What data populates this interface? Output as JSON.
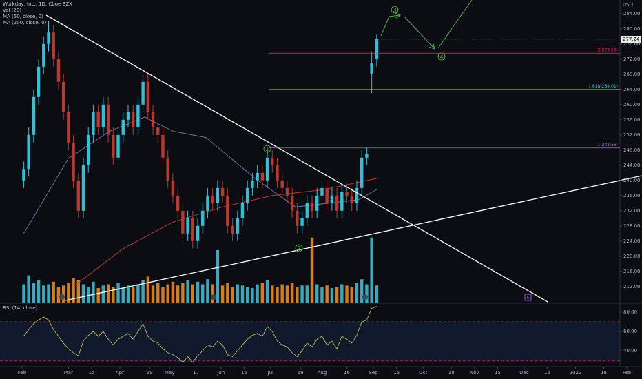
{
  "chart_data": {
    "type": "candlestick",
    "title": "Workday, Inc., 1D, Cboe BZX",
    "currency": "USD",
    "up_color": "#2bc3d9",
    "down_color": "#b8392f",
    "x": [
      32,
      35,
      38,
      41,
      44,
      47,
      50,
      53,
      56,
      59,
      62,
      65,
      68,
      71,
      74,
      77,
      80,
      83,
      86,
      89,
      92,
      95,
      98,
      101,
      104,
      107,
      110,
      113,
      116,
      119,
      122,
      125,
      128,
      131,
      134,
      137,
      140,
      143,
      146,
      149,
      152,
      155,
      158,
      161,
      164,
      167,
      170,
      173,
      176,
      179,
      182,
      185,
      188,
      191,
      194,
      197,
      200,
      203,
      206,
      209,
      212,
      215,
      218,
      221,
      224,
      227,
      230,
      233,
      236,
      239,
      242,
      245
    ],
    "open": [
      240,
      243,
      252,
      262,
      270,
      276,
      279,
      272,
      266,
      258,
      250,
      240,
      232,
      244,
      252,
      258,
      254,
      260,
      252,
      246,
      252,
      256,
      258,
      254,
      260,
      266,
      258,
      254,
      252,
      246,
      240,
      236,
      232,
      226,
      230,
      224,
      228,
      232,
      236,
      234,
      238,
      236,
      228,
      226,
      230,
      234,
      238,
      240,
      242,
      240,
      246,
      244,
      240,
      238,
      236,
      232,
      228,
      230,
      234,
      232,
      236,
      238,
      234,
      236,
      232,
      237,
      236,
      234,
      238,
      246,
      268,
      272
    ],
    "high": [
      245,
      254,
      264,
      272,
      278,
      282,
      281,
      274,
      268,
      260,
      252,
      242,
      246,
      254,
      260,
      260,
      262,
      262,
      254,
      254,
      258,
      260,
      260,
      262,
      268,
      268,
      260,
      256,
      254,
      248,
      242,
      238,
      234,
      232,
      232,
      230,
      234,
      238,
      238,
      240,
      240,
      238,
      230,
      232,
      236,
      240,
      242,
      244,
      244,
      248,
      248,
      246,
      242,
      240,
      238,
      234,
      232,
      236,
      236,
      238,
      240,
      240,
      238,
      238,
      239,
      239,
      238,
      240,
      248,
      248.56,
      274,
      278.5
    ],
    "low": [
      238,
      241,
      250,
      260,
      268,
      274,
      270,
      264,
      256,
      248,
      238,
      230,
      230,
      242,
      250,
      252,
      252,
      250,
      244,
      244,
      250,
      254,
      252,
      252,
      258,
      256,
      252,
      250,
      244,
      238,
      234,
      230,
      224,
      224,
      222,
      222,
      226,
      230,
      232,
      232,
      234,
      226,
      224,
      224,
      228,
      232,
      236,
      238,
      238,
      238,
      242,
      238,
      236,
      234,
      230,
      226,
      226,
      228,
      230,
      230,
      234,
      232,
      232,
      230,
      230,
      234,
      232,
      232,
      236,
      244,
      263,
      270
    ],
    "close": [
      243,
      252,
      262,
      270,
      276,
      279,
      272,
      266,
      258,
      250,
      240,
      232,
      244,
      252,
      258,
      254,
      260,
      252,
      246,
      252,
      256,
      258,
      254,
      260,
      266,
      258,
      254,
      252,
      246,
      240,
      236,
      232,
      226,
      230,
      224,
      228,
      232,
      236,
      234,
      238,
      236,
      228,
      226,
      230,
      234,
      238,
      240,
      242,
      240,
      246,
      244,
      240,
      238,
      236,
      232,
      228,
      230,
      234,
      232,
      236,
      238,
      234,
      236,
      232,
      237,
      236,
      234,
      238,
      246,
      247,
      271,
      277.24
    ],
    "xlim": [
      17.7,
      391.8
    ],
    "xticks": [
      {
        "value": 31,
        "label": "Feb"
      },
      {
        "value": 59,
        "label": "Mar"
      },
      {
        "value": 73,
        "label": "15"
      },
      {
        "value": 90,
        "label": "Apr"
      },
      {
        "value": 108,
        "label": "19"
      },
      {
        "value": 120,
        "label": "May"
      },
      {
        "value": 136,
        "label": "17"
      },
      {
        "value": 151,
        "label": "Jun"
      },
      {
        "value": 165,
        "label": "15"
      },
      {
        "value": 181,
        "label": "Jul"
      },
      {
        "value": 199,
        "label": "19"
      },
      {
        "value": 212,
        "label": "Aug"
      },
      {
        "value": 227,
        "label": "16"
      },
      {
        "value": 243,
        "label": "Sep"
      },
      {
        "value": 257,
        "label": "15"
      },
      {
        "value": 273,
        "label": "Oct"
      },
      {
        "value": 290,
        "label": "18"
      },
      {
        "value": 304,
        "label": "Nov"
      },
      {
        "value": 318,
        "label": "15"
      },
      {
        "value": 334,
        "label": "Dec"
      },
      {
        "value": 348,
        "label": "15"
      },
      {
        "value": 365,
        "label": "2022"
      },
      {
        "value": 382,
        "label": "18"
      },
      {
        "value": 396,
        "label": "Feb"
      }
    ],
    "ylim": [
      207.6,
      287.6
    ],
    "yticks": [
      {
        "value": 212,
        "label": "212.00"
      },
      {
        "value": 216,
        "label": "216.00"
      },
      {
        "value": 220,
        "label": "220.00"
      },
      {
        "value": 224,
        "label": "224.00"
      },
      {
        "value": 228,
        "label": "228.00"
      },
      {
        "value": 232,
        "label": "232.00"
      },
      {
        "value": 236,
        "label": "236.00"
      },
      {
        "value": 240,
        "label": "240.00"
      },
      {
        "value": 244,
        "label": "244.00"
      },
      {
        "value": 248,
        "label": "248.00"
      },
      {
        "value": 252,
        "label": "252.00"
      },
      {
        "value": 256,
        "label": "256.00"
      },
      {
        "value": 260,
        "label": "260.00"
      },
      {
        "value": 264,
        "label": "264.00"
      },
      {
        "value": 268,
        "label": "268.00"
      },
      {
        "value": 272,
        "label": "272.00"
      },
      {
        "value": 276,
        "label": "276.00"
      },
      {
        "value": 280,
        "label": "280.00"
      },
      {
        "value": 284,
        "label": "284.00"
      }
    ],
    "volume": {
      "name": "Vol (20)",
      "up_color": "#3fc8dc",
      "down_color": "#f7931e",
      "ylim": [
        0,
        6
      ],
      "values": [
        1.5,
        2.2,
        1.6,
        1.8,
        1.4,
        1.5,
        1.7,
        1.3,
        1.4,
        1.6,
        2.0,
        1.8,
        1.5,
        1.3,
        1.7,
        1.2,
        1.4,
        1.5,
        1.3,
        1.6,
        1.2,
        1.4,
        1.3,
        1.5,
        1.8,
        2.1,
        1.4,
        1.6,
        1.3,
        1.5,
        1.7,
        1.4,
        1.6,
        1.8,
        1.5,
        1.7,
        1.5,
        1.9,
        1.5,
        4.2,
        1.4,
        1.6,
        1.3,
        1.5,
        1.4,
        1.3,
        1.2,
        1.5,
        1.6,
        1.8,
        1.4,
        1.3,
        1.5,
        1.4,
        1.6,
        1.3,
        1.4,
        1.4,
        5.2,
        1.5,
        1.3,
        1.4,
        1.2,
        1.3,
        1.5,
        1.4,
        1.3,
        1.6,
        1.9,
        1.5,
        5.2,
        1.4
      ]
    },
    "moving_averages": [
      {
        "name": "MA (50, close, 0)",
        "color": "#6b75a8",
        "x": [
          32,
          59,
          84,
          105,
          122,
          142,
          172,
          196,
          234,
          245
        ],
        "values": [
          226,
          245.8,
          253,
          256.7,
          253,
          251.3,
          240.4,
          233,
          234.9,
          237.6
        ]
      },
      {
        "name": "MA (200, close, 0)",
        "color": "#c0392b",
        "x": [
          62,
          92,
          122,
          152,
          182,
          212,
          245
        ],
        "values": [
          212,
          222,
          229,
          233,
          236,
          237.5,
          240.5
        ]
      }
    ],
    "levels": [
      {
        "label": "2(273.56)",
        "value": 273.56,
        "color": "#e0394a"
      },
      {
        "label": "1.618(264.01)",
        "value": 264.01,
        "color": "#3ac6d8"
      },
      {
        "label": "1(248.56)",
        "value": 248.56,
        "color": "#b06ad8"
      }
    ],
    "waves": [
      "1",
      "2",
      "3",
      "4"
    ],
    "earnings_marker": "E",
    "rsi": {
      "name": "RSI (14, close)",
      "color": "#d8cc5c",
      "ylim": [
        23.6,
        89.3
      ],
      "bands": [
        70,
        30
      ],
      "yticks": [
        {
          "value": 80,
          "label": "80.00"
        },
        {
          "value": 60,
          "label": "60.00"
        },
        {
          "value": 40,
          "label": "40.00"
        }
      ],
      "values": [
        55,
        62,
        68,
        72,
        75,
        72,
        62,
        55,
        48,
        42,
        38,
        35,
        50,
        56,
        60,
        55,
        60,
        52,
        46,
        52,
        55,
        58,
        52,
        60,
        68,
        55,
        50,
        48,
        42,
        38,
        36,
        33,
        28,
        34,
        28,
        35,
        40,
        46,
        44,
        50,
        46,
        36,
        34,
        40,
        46,
        52,
        56,
        58,
        55,
        65,
        60,
        50,
        46,
        44,
        38,
        34,
        40,
        48,
        44,
        52,
        55,
        46,
        50,
        42,
        55,
        52,
        48,
        56,
        70,
        72,
        84,
        86
      ]
    }
  }
}
